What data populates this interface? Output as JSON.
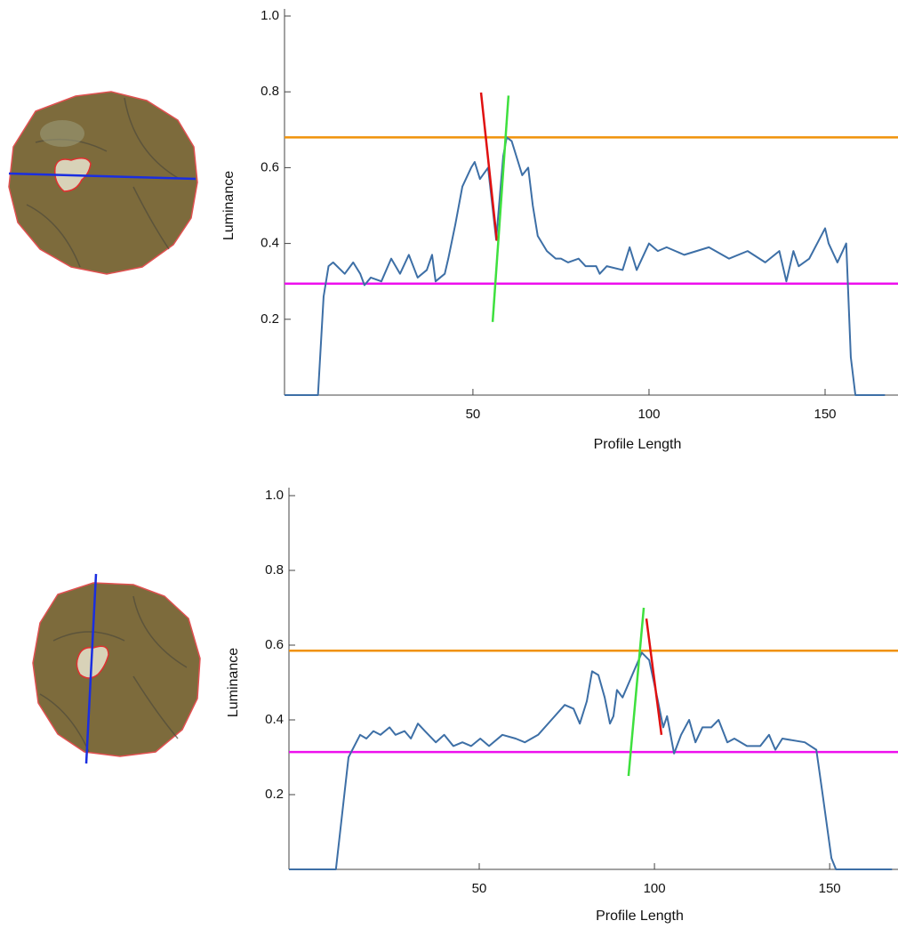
{
  "chart_data": [
    {
      "type": "line",
      "xlabel": "Profile Length",
      "ylabel": "Luminance",
      "x": [
        -3.5,
        6,
        7.6,
        9,
        10.3,
        13.6,
        16,
        18,
        19.2,
        21,
        24,
        26.8,
        29.3,
        31.8,
        34.3,
        36.9,
        38.4,
        39.4,
        42,
        43,
        45,
        47,
        49.5,
        50.5,
        52,
        54.3,
        56.6,
        58.6,
        59.6,
        61,
        63,
        64,
        65.7,
        67,
        68.4,
        71,
        73.5,
        75,
        77,
        80,
        82,
        85,
        86,
        88,
        92.5,
        94.5,
        96.5,
        100,
        102.5,
        105,
        110,
        117,
        122.7,
        128,
        133,
        137,
        139,
        141,
        142.5,
        145.5,
        150,
        151,
        153.5,
        156,
        157.3,
        158.6,
        167
      ],
      "series": [
        {
          "color": "#3d6fa6",
          "values": [
            0,
            0,
            0.26,
            0.34,
            0.35,
            0.32,
            0.35,
            0.32,
            0.29,
            0.31,
            0.3,
            0.36,
            0.32,
            0.37,
            0.31,
            0.33,
            0.37,
            0.3,
            0.32,
            0.36,
            0.45,
            0.55,
            0.6,
            0.615,
            0.57,
            0.6,
            0.41,
            0.63,
            0.68,
            0.67,
            0.61,
            0.58,
            0.6,
            0.5,
            0.42,
            0.38,
            0.36,
            0.36,
            0.35,
            0.36,
            0.34,
            0.34,
            0.32,
            0.34,
            0.33,
            0.39,
            0.33,
            0.4,
            0.38,
            0.39,
            0.37,
            0.39,
            0.36,
            0.38,
            0.35,
            0.38,
            0.3,
            0.38,
            0.34,
            0.36,
            0.44,
            0.4,
            0.35,
            0.4,
            0.1,
            0,
            0
          ]
        }
      ],
      "xlim": [
        -3.5,
        170.7
      ],
      "ylim": [
        0,
        1
      ],
      "xticks": [
        50,
        100,
        150
      ],
      "yticks": [
        0.2,
        0.4,
        0.6,
        0.8,
        {
          "value": 1,
          "label": "1.0"
        }
      ],
      "hlines": [
        {
          "value": 0.68,
          "color": "#f0920a"
        },
        {
          "value": 0.294,
          "color": "#ee10ee"
        }
      ],
      "segments": [
        {
          "color": "#e01010",
          "x": [
            52.3,
            56.8
          ],
          "y": [
            0.798,
            0.407
          ]
        },
        {
          "color": "#3ee03e",
          "x": [
            55.6,
            60.1
          ],
          "y": [
            0.193,
            0.79
          ]
        }
      ]
    },
    {
      "type": "line",
      "xlabel": "Profile Length",
      "ylabel": "Luminance",
      "x": [
        -4.3,
        9.1,
        12.7,
        16,
        17.8,
        19.8,
        21.8,
        24.4,
        26.1,
        28.7,
        30.5,
        32.5,
        34.5,
        37.6,
        40,
        42.6,
        45.2,
        47.7,
        50.3,
        52.8,
        56.6,
        60.4,
        63,
        66.8,
        70.6,
        74.4,
        76.9,
        78.7,
        80.7,
        82.2,
        84,
        85.8,
        87.3,
        88.3,
        89.3,
        90.9,
        96.4,
        98.5,
        101,
        102.5,
        103.6,
        105.6,
        107.6,
        109.9,
        111.7,
        113.7,
        116.2,
        118.3,
        120.8,
        122.8,
        126.4,
        130.2,
        132.7,
        134.5,
        136.5,
        142.9,
        146.2,
        148,
        150.5,
        151.8,
        167.8
      ],
      "series": [
        {
          "color": "#3d6fa6",
          "values": [
            0,
            0,
            0.3,
            0.36,
            0.35,
            0.37,
            0.36,
            0.38,
            0.36,
            0.37,
            0.35,
            0.39,
            0.37,
            0.34,
            0.36,
            0.33,
            0.34,
            0.33,
            0.35,
            0.33,
            0.36,
            0.35,
            0.34,
            0.36,
            0.4,
            0.44,
            0.43,
            0.39,
            0.45,
            0.53,
            0.52,
            0.46,
            0.39,
            0.41,
            0.48,
            0.46,
            0.58,
            0.56,
            0.45,
            0.38,
            0.41,
            0.31,
            0.36,
            0.4,
            0.34,
            0.38,
            0.38,
            0.4,
            0.34,
            0.35,
            0.33,
            0.33,
            0.36,
            0.32,
            0.35,
            0.34,
            0.32,
            0.2,
            0.03,
            0,
            0
          ]
        }
      ],
      "xlim": [
        -4.3,
        169.5
      ],
      "ylim": [
        0,
        1
      ],
      "xticks": [
        50,
        100,
        150
      ],
      "yticks": [
        0.2,
        0.4,
        0.6,
        0.8,
        {
          "value": 1,
          "label": "1.0"
        }
      ],
      "hlines": [
        {
          "value": 0.585,
          "color": "#f0920a"
        },
        {
          "value": 0.314,
          "color": "#ee10ee"
        }
      ],
      "segments": [
        {
          "color": "#3ee03e",
          "x": [
            92.6,
            96.95
          ],
          "y": [
            0.25,
            0.7
          ]
        },
        {
          "color": "#e01010",
          "x": [
            97.7,
            102
          ],
          "y": [
            0.671,
            0.36
          ]
        }
      ]
    }
  ]
}
